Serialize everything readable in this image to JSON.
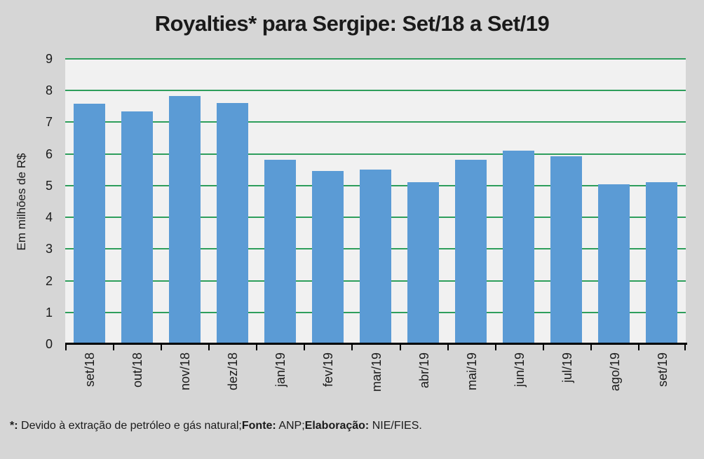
{
  "chart_data": {
    "type": "bar",
    "title": "Royalties* para Sergipe: Set/18 a Set/19",
    "xlabel": "",
    "ylabel": "Em milhões de R$",
    "categories": [
      "set/18",
      "out/18",
      "nov/18",
      "dez/18",
      "jan/19",
      "fev/19",
      "mar/19",
      "abr/19",
      "mai/19",
      "jun/19",
      "jul/19",
      "ago/19",
      "set/19"
    ],
    "values": [
      7.59,
      7.34,
      7.83,
      7.6,
      5.82,
      5.47,
      5.5,
      5.1,
      5.82,
      6.1,
      5.93,
      5.05,
      5.1
    ],
    "ylim": [
      0,
      9
    ],
    "yticks": [
      0,
      1,
      2,
      3,
      4,
      5,
      6,
      7,
      8,
      9
    ],
    "grid": "horizontal",
    "legend": "none"
  },
  "footnote": {
    "note_label": "*:",
    "note_text": " Devido à extração de petróleo e gás natural;",
    "source_label": "Fonte:",
    "source_text": " ANP;",
    "elaboration_label": "Elaboração:",
    "elaboration_text": " NIE/FIES."
  },
  "colors": {
    "page_background": "#D6D6D6",
    "plot_background": "#F1F1F1",
    "bar": "#5B9BD5",
    "gridline": "#2E9E5C",
    "axis": "#000000",
    "text": "#1A1A1A"
  }
}
